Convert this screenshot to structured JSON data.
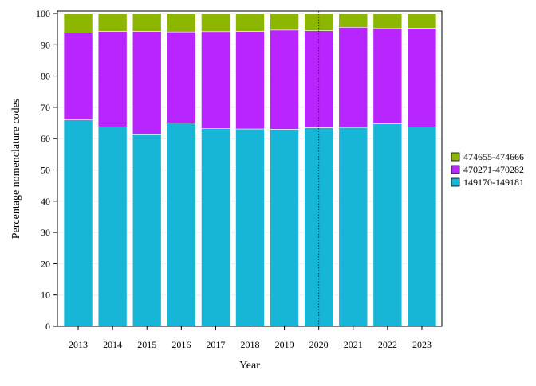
{
  "chart_data": {
    "type": "bar",
    "stacked": true,
    "title": "",
    "xlabel": "Year",
    "ylabel": "Percentage nomenclature codes",
    "ylim": [
      0,
      100
    ],
    "yticks": [
      0,
      10,
      20,
      30,
      40,
      50,
      60,
      70,
      80,
      90,
      100
    ],
    "grid": true,
    "legend_position": "right",
    "reference_line": {
      "x": "2020",
      "style": "dotted",
      "color": "#8B0000"
    },
    "categories": [
      "2013",
      "2014",
      "2015",
      "2016",
      "2017",
      "2018",
      "2019",
      "2020",
      "2021",
      "2022",
      "2023"
    ],
    "series": [
      {
        "name": "149170-149181",
        "color": "#17B6D7",
        "values": [
          66.0,
          63.8,
          61.5,
          65.0,
          63.2,
          63.1,
          63.0,
          63.5,
          63.6,
          64.8,
          63.7
        ]
      },
      {
        "name": "470271-470282",
        "color": "#B825FF",
        "values": [
          27.8,
          30.5,
          32.8,
          29.1,
          31.0,
          31.2,
          31.7,
          31.0,
          32.0,
          30.4,
          31.6
        ]
      },
      {
        "name": "474655-474666",
        "color": "#8DB600",
        "values": [
          6.2,
          5.7,
          5.7,
          5.9,
          5.8,
          5.7,
          5.3,
          5.5,
          4.4,
          4.8,
          4.7
        ]
      }
    ]
  }
}
